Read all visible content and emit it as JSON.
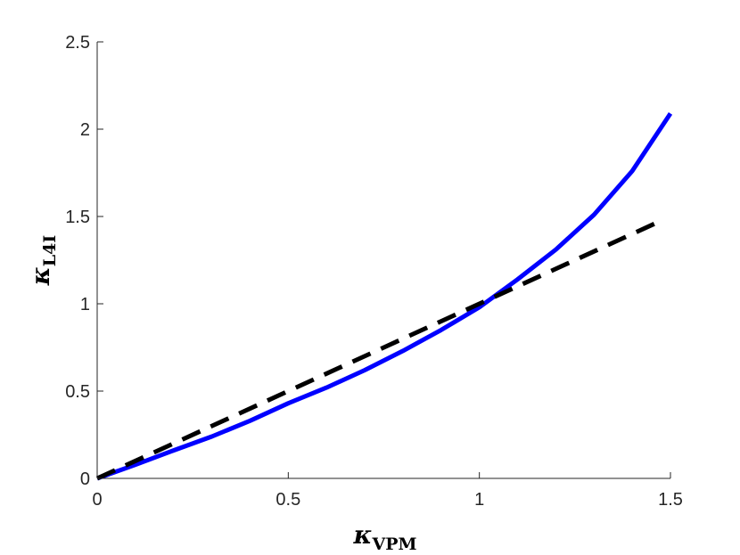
{
  "chart_data": {
    "type": "line",
    "title": "",
    "xlabel": {
      "symbol": "κ",
      "subscript": "VPM"
    },
    "ylabel": {
      "symbol": "κ",
      "subscript": "L4I"
    },
    "xlim": [
      0,
      1.5
    ],
    "ylim": [
      0,
      2.5
    ],
    "xticks": [
      0,
      0.5,
      1,
      1.5
    ],
    "xtick_labels": [
      "0",
      "0.5",
      "1",
      "1.5"
    ],
    "yticks": [
      0,
      0.5,
      1,
      1.5,
      2,
      2.5
    ],
    "ytick_labels": [
      "0",
      "0.5",
      "1",
      "1.5",
      "2",
      "2.5"
    ],
    "grid": false,
    "legend": "none",
    "series": [
      {
        "color": "#0000ff",
        "style": "solid",
        "x": [
          0,
          0.1,
          0.2,
          0.3,
          0.4,
          0.5,
          0.6,
          0.7,
          0.8,
          0.9,
          1.0,
          1.1,
          1.2,
          1.3,
          1.4,
          1.5
        ],
        "y": [
          0,
          0.078,
          0.16,
          0.24,
          0.33,
          0.43,
          0.52,
          0.62,
          0.73,
          0.85,
          0.98,
          1.14,
          1.31,
          1.51,
          1.76,
          2.09
        ]
      },
      {
        "color": "#000000",
        "style": "dashed",
        "x": [
          0,
          1.47
        ],
        "y": [
          0,
          1.47
        ]
      }
    ]
  }
}
